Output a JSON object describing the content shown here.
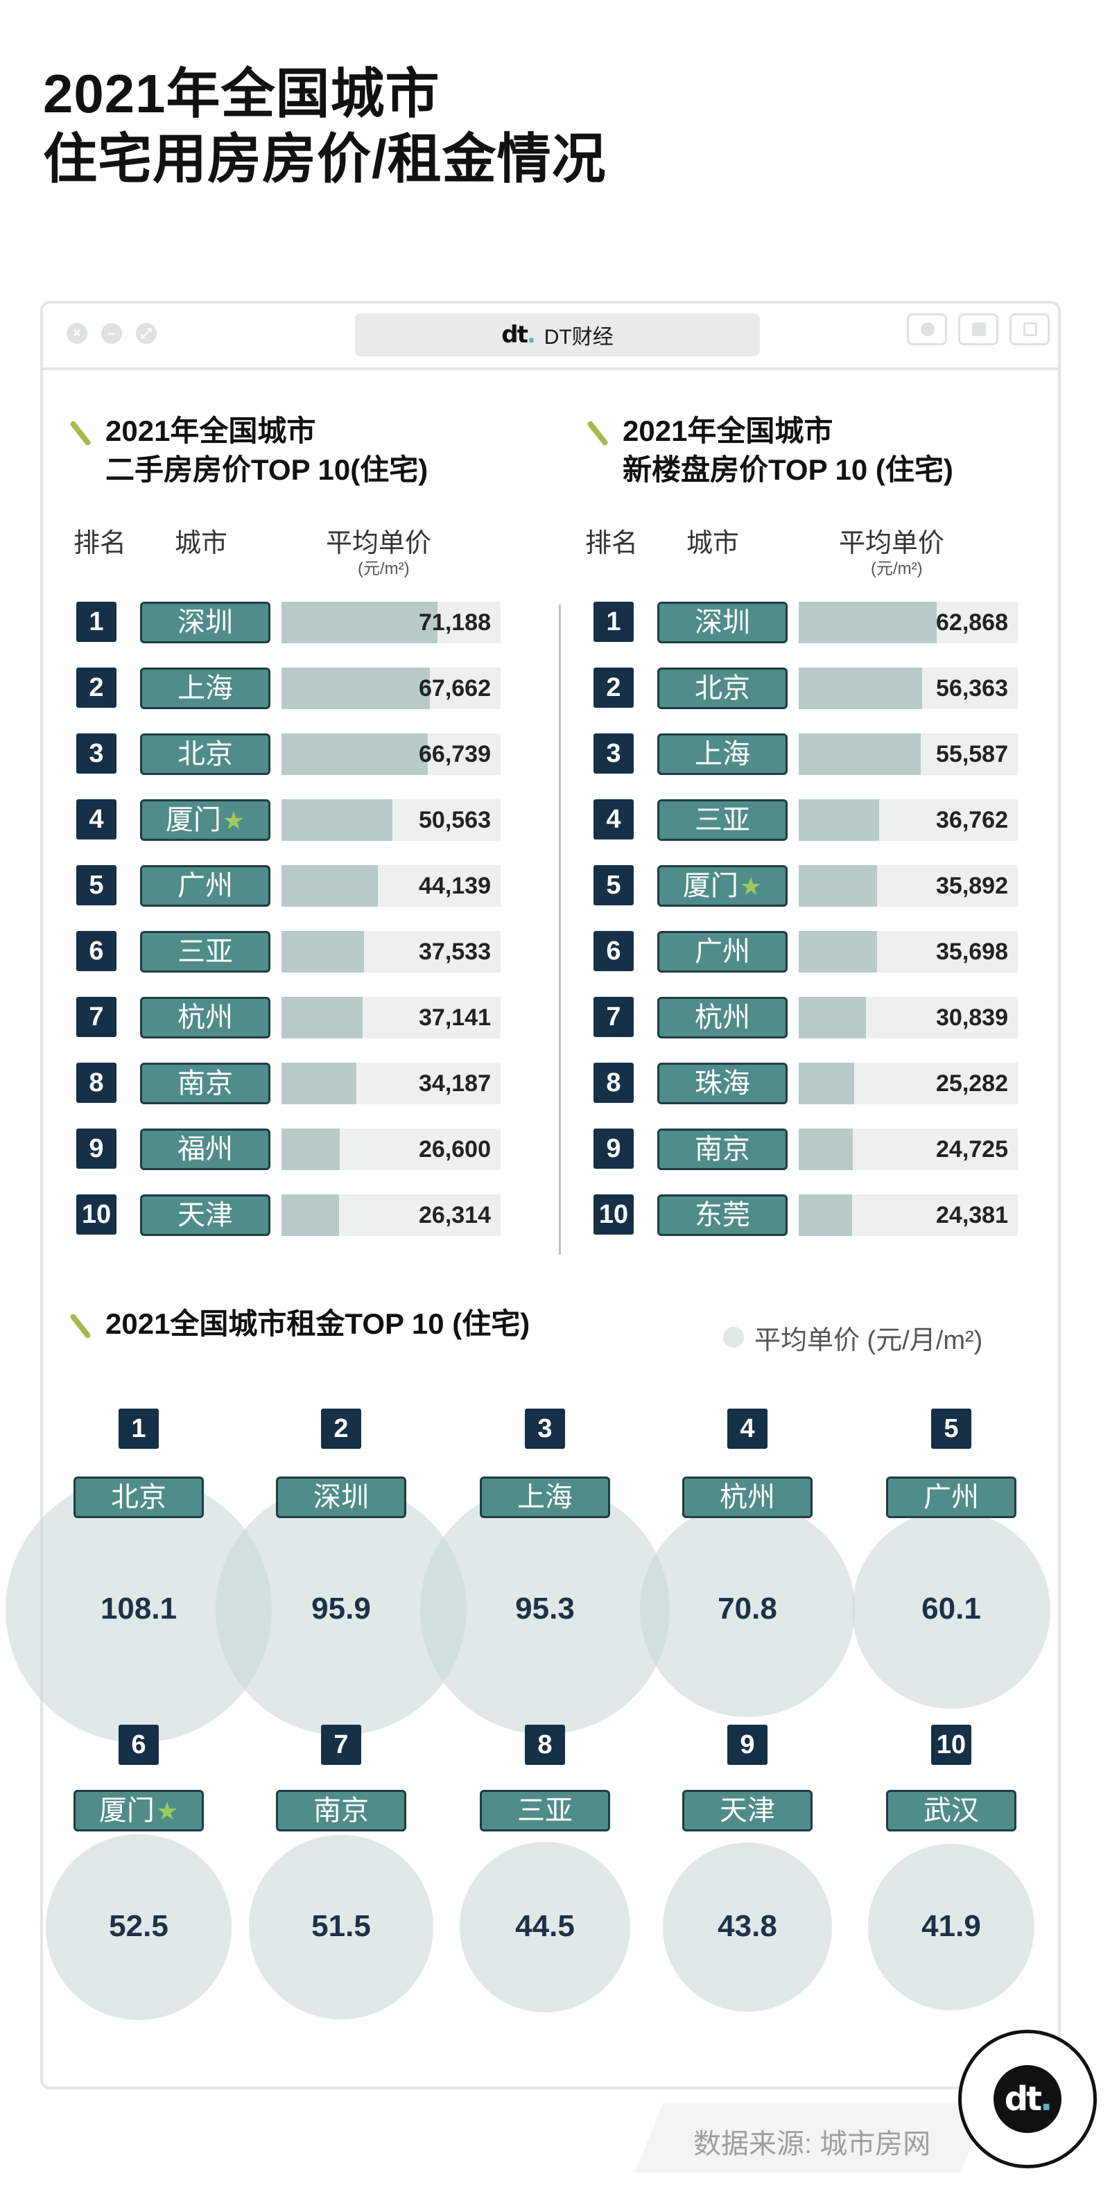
{
  "headline": {
    "line1": "2021年全国城市",
    "line2": "住宅用房房价/租金情况"
  },
  "window": {
    "url_text": "DT财经",
    "logo_text": "dt",
    "controls": [
      "close",
      "minimize",
      "expand"
    ],
    "toolbar_icons": [
      "record-icon",
      "share-icon",
      "windows-icon"
    ]
  },
  "left_table": {
    "title_line1": "2021年全国城市",
    "title_line2": "二手房房价TOP 10(住宅)",
    "col_rank": "排名",
    "col_city": "城市",
    "col_price": "平均单价",
    "unit": "(元/m²)"
  },
  "right_table": {
    "title_line1": "2021年全国城市",
    "title_line2": "新楼盘房价TOP 10 (住宅)",
    "col_rank": "排名",
    "col_city": "城市",
    "col_price": "平均单价",
    "unit": "(元/m²)"
  },
  "rent_section": {
    "title": "2021全国城市租金TOP 10 (住宅)",
    "legend": "平均单价 (元/月/m²)"
  },
  "source": "数据来源: 城市房网",
  "badge_text": "dt",
  "colors": {
    "rank_bg": "#153047",
    "city_bg": "#4f8c8a",
    "bar": "#b9cbc9",
    "star": "#9ccb5e"
  },
  "chart_data": [
    {
      "type": "bar",
      "title": "2021年全国城市二手房房价TOP 10(住宅)",
      "ylabel": "平均单价 (元/m²)",
      "categories": [
        "深圳",
        "上海",
        "北京",
        "厦门",
        "广州",
        "三亚",
        "杭州",
        "南京",
        "福州",
        "天津"
      ],
      "ranks": [
        "1",
        "2",
        "3",
        "4",
        "5",
        "6",
        "7",
        "8",
        "9",
        "10"
      ],
      "values": [
        71188,
        67662,
        66739,
        50563,
        44139,
        37533,
        37141,
        34187,
        26600,
        26314
      ],
      "labels": [
        "71,188",
        "67,662",
        "66,739",
        "50,563",
        "44,139",
        "37,533",
        "37,141",
        "34,187",
        "26,600",
        "26,314"
      ],
      "starred": [
        "厦门"
      ],
      "ylim": [
        0,
        100000
      ]
    },
    {
      "type": "bar",
      "title": "2021年全国城市新楼盘房价TOP 10 (住宅)",
      "ylabel": "平均单价 (元/m²)",
      "categories": [
        "深圳",
        "北京",
        "上海",
        "三亚",
        "厦门",
        "广州",
        "杭州",
        "珠海",
        "南京",
        "东莞"
      ],
      "ranks": [
        "1",
        "2",
        "3",
        "4",
        "5",
        "6",
        "7",
        "8",
        "9",
        "10"
      ],
      "values": [
        62868,
        56363,
        55587,
        36762,
        35892,
        35698,
        30839,
        25282,
        24725,
        24381
      ],
      "labels": [
        "62,868",
        "56,363",
        "55,587",
        "36,762",
        "35,892",
        "35,698",
        "30,839",
        "25,282",
        "24,725",
        "24,381"
      ],
      "starred": [
        "厦门"
      ],
      "ylim": [
        0,
        100000
      ]
    },
    {
      "type": "scatter",
      "title": "2021全国城市租金TOP 10 (住宅)",
      "ylabel": "平均单价 (元/月/m²)",
      "categories": [
        "北京",
        "深圳",
        "上海",
        "杭州",
        "广州",
        "厦门",
        "南京",
        "三亚",
        "天津",
        "武汉"
      ],
      "ranks": [
        "1",
        "2",
        "3",
        "4",
        "5",
        "6",
        "7",
        "8",
        "9",
        "10"
      ],
      "values": [
        108.1,
        95.9,
        95.3,
        70.8,
        60.1,
        52.5,
        51.5,
        44.5,
        43.8,
        41.9
      ],
      "labels": [
        "108.1",
        "95.9",
        "95.3",
        "70.8",
        "60.1",
        "52.5",
        "51.5",
        "44.5",
        "43.8",
        "41.9"
      ],
      "starred": [
        "厦门"
      ]
    }
  ]
}
